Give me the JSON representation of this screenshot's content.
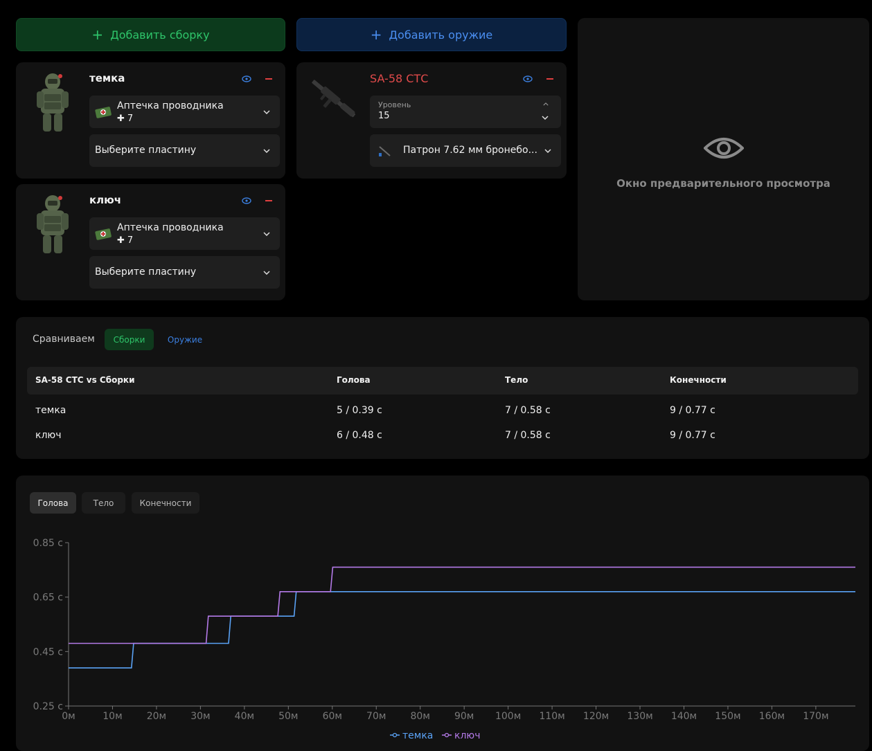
{
  "actions": {
    "add_build": "Добавить сборку",
    "add_weapon": "Добавить оружие"
  },
  "builds": [
    {
      "name": "темка",
      "medkit": {
        "name": "Аптечка проводника",
        "count": "7"
      },
      "plate": "Выберите пластину"
    },
    {
      "name": "ключ",
      "medkit": {
        "name": "Аптечка проводника",
        "count": "7"
      },
      "plate": "Выберите пластину"
    }
  ],
  "weapon": {
    "name": "SA-58 СТС",
    "level_label": "Уровень",
    "level_value": "15",
    "ammo": "Патрон 7.62 мм бронебо..."
  },
  "preview": {
    "text": "Окно предварительного просмотра"
  },
  "compare": {
    "label": "Сравниваем",
    "toggle_builds": "Сборки",
    "toggle_weapons": "Оружие",
    "headers": [
      "SA-58 СТС vs Сборки",
      "Голова",
      "Тело",
      "Конечности"
    ],
    "rows": [
      [
        "темка",
        "5 / 0.39 с",
        "7 / 0.58 с",
        "9 / 0.77 с"
      ],
      [
        "ключ",
        "6 / 0.48 с",
        "7 / 0.58 с",
        "9 / 0.77 с"
      ]
    ]
  },
  "chart_tabs": [
    "Голова",
    "Тело",
    "Конечности"
  ],
  "colors": {
    "accent_green": "#2ec46a",
    "accent_blue": "#4a8ef0",
    "danger_red": "#e04040",
    "series_1": "#5aa2f5",
    "series_2": "#b47ae8"
  },
  "chart_data": {
    "type": "line",
    "x_ticks": [
      "0м",
      "10м",
      "20м",
      "30м",
      "40м",
      "50м",
      "60м",
      "70м",
      "80м",
      "90м",
      "100м",
      "110м",
      "120м",
      "130м",
      "140м",
      "150м",
      "160м",
      "170м"
    ],
    "y_ticks": [
      "0.85 с",
      "0.65 с",
      "0.45 с",
      "0.25 с"
    ],
    "xlim": [
      0,
      179
    ],
    "ylim": [
      0.25,
      0.85
    ],
    "legend_position": "bottom",
    "series": [
      {
        "name": "темка",
        "color": "#5aa2f5",
        "points": [
          [
            0,
            0.39
          ],
          [
            14.3,
            0.39
          ],
          [
            14.8,
            0.48
          ],
          [
            36.4,
            0.48
          ],
          [
            36.9,
            0.58
          ],
          [
            51.3,
            0.58
          ],
          [
            51.8,
            0.67
          ],
          [
            179,
            0.67
          ]
        ]
      },
      {
        "name": "ключ",
        "color": "#b47ae8",
        "points": [
          [
            0,
            0.48
          ],
          [
            31.3,
            0.48
          ],
          [
            31.8,
            0.58
          ],
          [
            47.6,
            0.58
          ],
          [
            48.1,
            0.67
          ],
          [
            59.6,
            0.67
          ],
          [
            60.1,
            0.76
          ],
          [
            179,
            0.76
          ]
        ]
      }
    ]
  }
}
